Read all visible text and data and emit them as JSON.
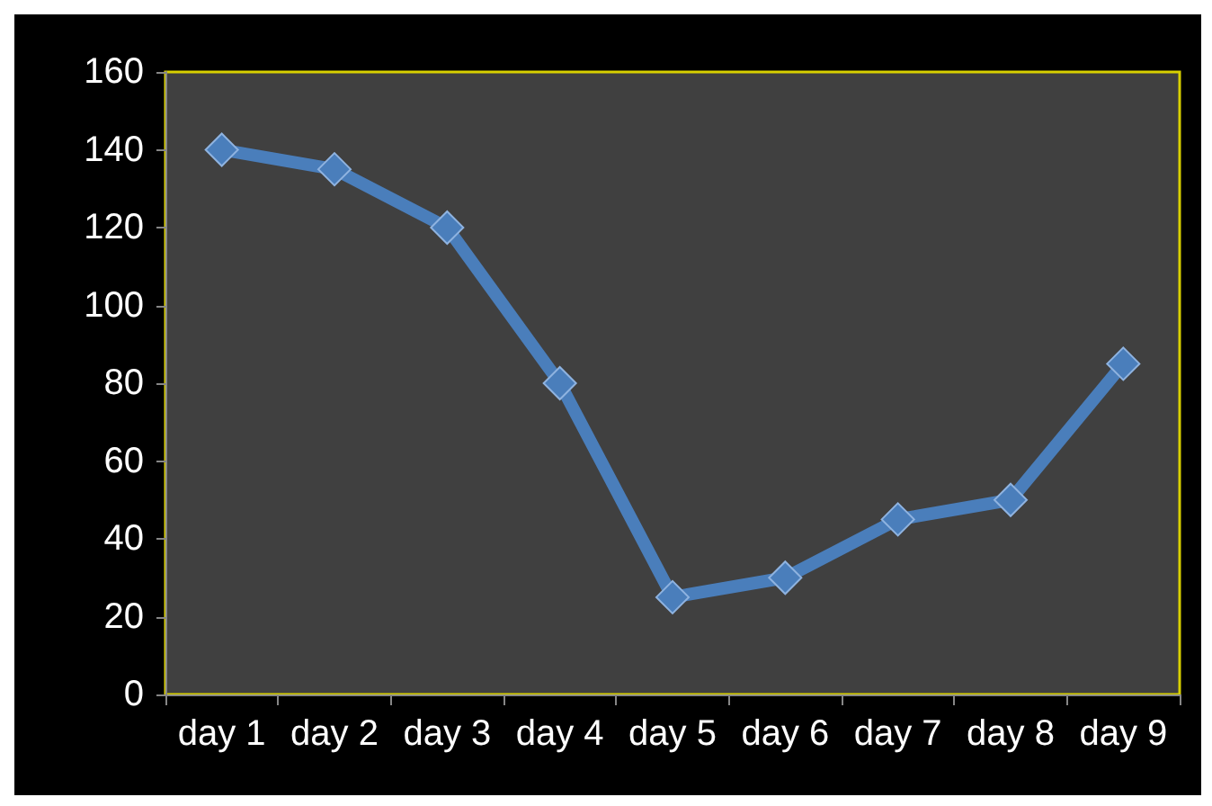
{
  "chart_data": {
    "type": "line",
    "categories": [
      "day 1",
      "day 2",
      "day 3",
      "day 4",
      "day 5",
      "day 6",
      "day 7",
      "day 8",
      "day 9"
    ],
    "series": [
      {
        "color": "#4a7ebb",
        "values": [
          140,
          135,
          120,
          80,
          25,
          30,
          45,
          50,
          85
        ]
      }
    ],
    "ylim": [
      0,
      160
    ],
    "yticks": [
      0,
      20,
      40,
      60,
      80,
      100,
      120,
      140,
      160
    ],
    "grid": false,
    "marker": "diamond",
    "line_style": "solid"
  }
}
